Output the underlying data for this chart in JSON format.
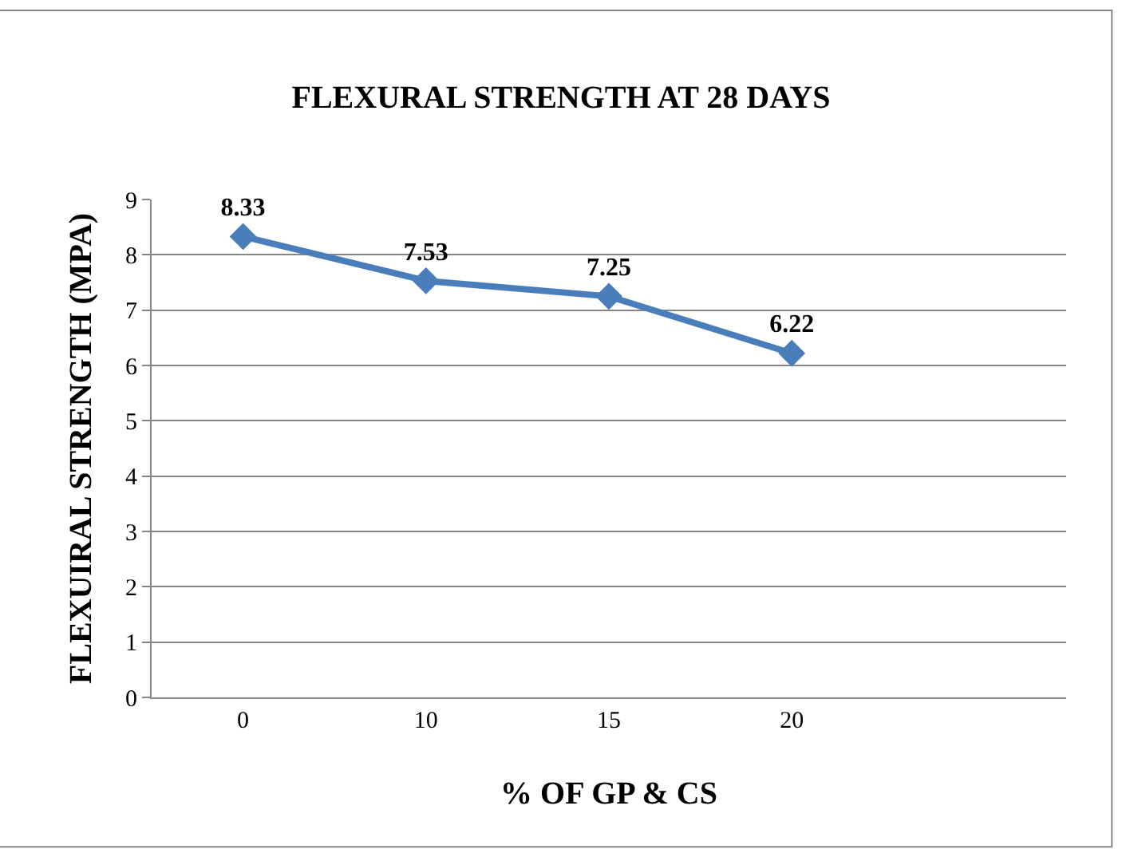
{
  "chart_data": {
    "type": "line",
    "title": "FLEXURAL STRENGTH AT 28 DAYS",
    "xlabel": "% OF GP & CS",
    "ylabel": "FLEXUIRAL STRENGTH (MPA)",
    "categories": [
      "0",
      "10",
      "15",
      "20",
      null
    ],
    "series": [
      {
        "color": "#4a7ebb",
        "values": [
          8.33,
          7.53,
          7.25,
          6.22,
          null
        ]
      }
    ],
    "ylim": [
      0,
      9
    ],
    "yticks": [
      0,
      1,
      2,
      3,
      4,
      5,
      6,
      7,
      8,
      9
    ],
    "grid": "y",
    "marker": "diamond",
    "line_style": "solid",
    "data_labels": true
  }
}
